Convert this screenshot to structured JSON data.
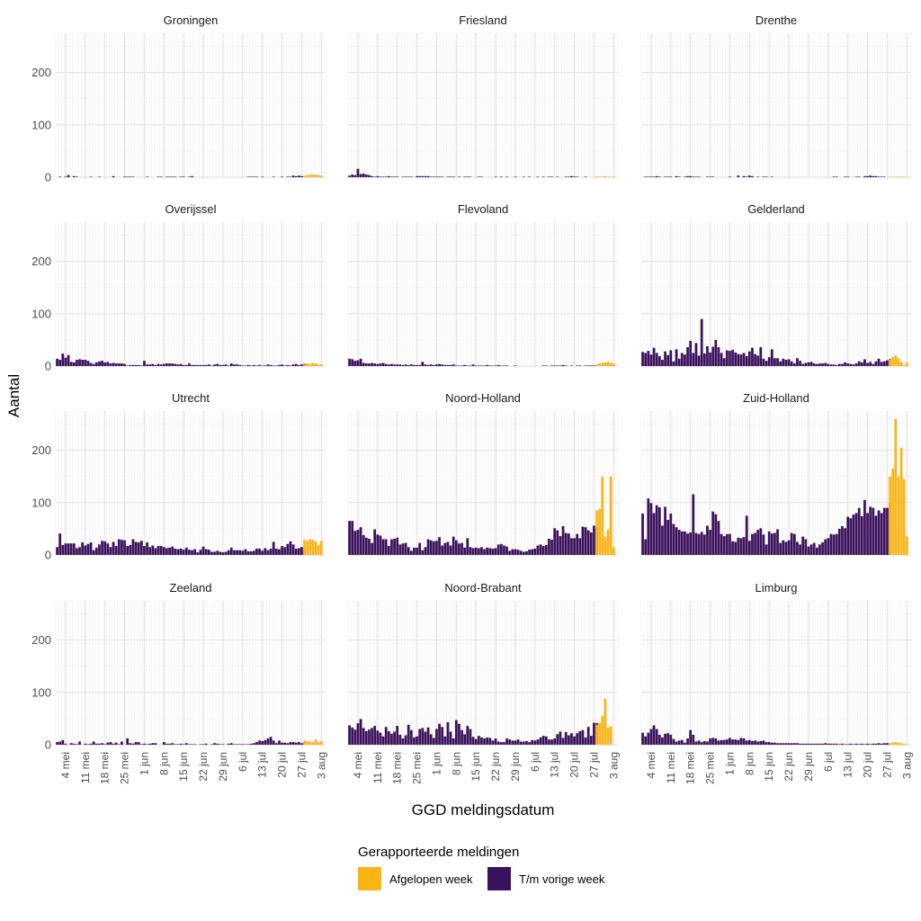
{
  "chart_data": {
    "type": "bar",
    "stacked": true,
    "facet_layout": {
      "rows": 4,
      "cols": 3
    },
    "xlabel": "GGD meldingsdatum",
    "ylabel": "Aantal",
    "ylim": [
      0,
      275
    ],
    "yticks": [
      0,
      100,
      200
    ],
    "date_range": [
      "2020-05-01",
      "2020-08-04"
    ],
    "x_tick_labels": [
      {
        "date": "2020-05-04",
        "label": "4 mei"
      },
      {
        "date": "2020-05-11",
        "label": "11 mei"
      },
      {
        "date": "2020-05-18",
        "label": "18 mei"
      },
      {
        "date": "2020-05-25",
        "label": "25 mei"
      },
      {
        "date": "2020-06-01",
        "label": "1 jun"
      },
      {
        "date": "2020-06-08",
        "label": "8 jun"
      },
      {
        "date": "2020-06-15",
        "label": "15 jun"
      },
      {
        "date": "2020-06-22",
        "label": "22 jun"
      },
      {
        "date": "2020-06-29",
        "label": "29 jun"
      },
      {
        "date": "2020-07-06",
        "label": "6 jul"
      },
      {
        "date": "2020-07-13",
        "label": "13 jul"
      },
      {
        "date": "2020-07-20",
        "label": "20 jul"
      },
      {
        "date": "2020-07-27",
        "label": "27 jul"
      },
      {
        "date": "2020-08-03",
        "label": "3 aug"
      }
    ],
    "grid": true,
    "legend": {
      "title": "Gerapporteerde meldingen",
      "position": "bottom",
      "entries": [
        {
          "label": "Afgelopen week",
          "color": "#FDB515"
        },
        {
          "label": "T/m vorige week",
          "color": "#3B115C"
        }
      ]
    },
    "last_week_start": "2020-07-28",
    "panels": [
      {
        "name": "Groningen",
        "vorige_week": [
          0,
          1,
          0,
          1,
          4,
          0,
          2,
          1,
          0,
          0,
          0,
          0,
          1,
          0,
          0,
          1,
          0,
          0,
          0,
          0,
          2,
          0,
          0,
          0,
          1,
          1,
          1,
          1,
          0,
          0,
          0,
          0,
          1,
          0,
          0,
          0,
          1,
          1,
          0,
          1,
          1,
          1,
          1,
          0,
          1,
          1,
          0,
          1,
          2,
          0,
          0,
          0,
          0,
          0,
          0,
          0,
          0,
          0,
          0,
          0,
          0,
          0,
          0,
          0,
          0,
          0,
          0,
          0,
          1,
          1,
          1,
          1,
          0,
          1,
          0,
          0,
          0,
          1,
          0,
          0,
          1,
          0,
          1,
          1,
          3,
          2,
          3,
          2,
          1
        ],
        "afgelopen_week": [
          3,
          4,
          5,
          5,
          5,
          4,
          3
        ]
      },
      {
        "name": "Friesland",
        "vorige_week": [
          3,
          5,
          4,
          16,
          6,
          7,
          5,
          4,
          2,
          1,
          2,
          1,
          1,
          1,
          2,
          1,
          1,
          1,
          0,
          1,
          1,
          1,
          1,
          0,
          2,
          2,
          2,
          2,
          2,
          1,
          1,
          1,
          1,
          1,
          0,
          1,
          1,
          1,
          0,
          1,
          0,
          1,
          1,
          1,
          0,
          0,
          1,
          1,
          0,
          0,
          0,
          0,
          1,
          0,
          1,
          0,
          1,
          0,
          0,
          1,
          0,
          0,
          1,
          0,
          1,
          0,
          0,
          1,
          0,
          1,
          0,
          1,
          1,
          0,
          1,
          0,
          0,
          1,
          1,
          2,
          1,
          1,
          0,
          0,
          1,
          0,
          0,
          0,
          1
        ],
        "afgelopen_week": [
          1,
          1,
          1,
          2,
          1,
          1,
          1
        ]
      },
      {
        "name": "Drenthe",
        "vorige_week": [
          0,
          1,
          1,
          1,
          1,
          2,
          1,
          0,
          1,
          1,
          1,
          0,
          2,
          1,
          0,
          1,
          2,
          2,
          1,
          1,
          1,
          0,
          0,
          1,
          1,
          1,
          0,
          0,
          0,
          0,
          0,
          1,
          0,
          0,
          3,
          0,
          2,
          1,
          3,
          2,
          0,
          1,
          0,
          1,
          1,
          0,
          1,
          0,
          0,
          0,
          0,
          0,
          0,
          0,
          0,
          0,
          0,
          0,
          0,
          0,
          0,
          0,
          0,
          0,
          0,
          0,
          0,
          0,
          1,
          1,
          0,
          0,
          1,
          1,
          0,
          0,
          1,
          1,
          0,
          2,
          2,
          3,
          2,
          2,
          1,
          1,
          1,
          0,
          0
        ],
        "afgelopen_week": [
          1,
          1,
          1,
          1,
          1,
          1,
          0
        ]
      },
      {
        "name": "Overijssel",
        "vorige_week": [
          14,
          12,
          24,
          16,
          21,
          8,
          7,
          12,
          13,
          12,
          12,
          10,
          6,
          4,
          7,
          9,
          10,
          7,
          8,
          5,
          6,
          5,
          5,
          5,
          4,
          1,
          2,
          2,
          2,
          2,
          1,
          10,
          3,
          3,
          4,
          2,
          4,
          3,
          4,
          5,
          5,
          5,
          4,
          3,
          4,
          2,
          2,
          5,
          2,
          2,
          2,
          2,
          2,
          2,
          3,
          1,
          3,
          4,
          2,
          2,
          3,
          1,
          5,
          3,
          3,
          2,
          1,
          1,
          2,
          1,
          2,
          1,
          2,
          1,
          1,
          3,
          2,
          1,
          1,
          2,
          3,
          1,
          2,
          1,
          3,
          4,
          2,
          3,
          4
        ],
        "afgelopen_week": [
          3,
          5,
          4,
          6,
          5,
          3,
          3
        ]
      },
      {
        "name": "Flevoland",
        "vorige_week": [
          14,
          13,
          10,
          11,
          14,
          6,
          5,
          5,
          6,
          5,
          4,
          5,
          6,
          4,
          3,
          4,
          3,
          3,
          3,
          2,
          3,
          2,
          3,
          2,
          2,
          2,
          8,
          3,
          2,
          3,
          2,
          3,
          4,
          3,
          2,
          2,
          2,
          3,
          1,
          1,
          1,
          2,
          1,
          1,
          3,
          1,
          1,
          1,
          1,
          2,
          1,
          1,
          1,
          2,
          1,
          1,
          1,
          0,
          0,
          1,
          0,
          0,
          0,
          0,
          0,
          0,
          0,
          0,
          0,
          1,
          1,
          0,
          1,
          1,
          1,
          1,
          2,
          1,
          0,
          1,
          0,
          1,
          1,
          0,
          1,
          1,
          1,
          1,
          2
        ],
        "afgelopen_week": [
          3,
          5,
          6,
          7,
          8,
          6,
          5
        ]
      },
      {
        "name": "Gelderland",
        "vorige_week": [
          27,
          25,
          29,
          22,
          35,
          25,
          19,
          12,
          28,
          21,
          30,
          9,
          32,
          14,
          25,
          22,
          36,
          48,
          25,
          44,
          20,
          90,
          24,
          38,
          26,
          37,
          50,
          36,
          25,
          15,
          30,
          29,
          31,
          26,
          23,
          22,
          25,
          19,
          28,
          35,
          23,
          20,
          36,
          14,
          10,
          17,
          32,
          15,
          15,
          9,
          14,
          12,
          13,
          9,
          5,
          15,
          10,
          4,
          6,
          7,
          8,
          5,
          4,
          5,
          5,
          6,
          4,
          3,
          3,
          2,
          4,
          4,
          7,
          5,
          4,
          3,
          5,
          9,
          7,
          13,
          6,
          8,
          4,
          9,
          14,
          8,
          9,
          11,
          13
        ],
        "afgelopen_week": [
          12,
          17,
          20,
          15,
          8,
          2,
          7
        ]
      },
      {
        "name": "Utrecht",
        "vorige_week": [
          15,
          41,
          19,
          22,
          22,
          22,
          22,
          13,
          15,
          24,
          18,
          21,
          24,
          9,
          14,
          20,
          27,
          26,
          22,
          15,
          25,
          17,
          30,
          29,
          28,
          17,
          19,
          30,
          25,
          24,
          27,
          17,
          24,
          15,
          18,
          13,
          17,
          17,
          15,
          13,
          14,
          16,
          12,
          11,
          12,
          10,
          14,
          10,
          9,
          11,
          5,
          10,
          16,
          11,
          10,
          6,
          6,
          8,
          6,
          5,
          6,
          9,
          14,
          9,
          9,
          9,
          8,
          11,
          7,
          7,
          8,
          12,
          12,
          8,
          13,
          9,
          12,
          25,
          12,
          11,
          17,
          15,
          21,
          26,
          20,
          12,
          13,
          15,
          9
        ],
        "afgelopen_week": [
          29,
          27,
          30,
          29,
          26,
          19,
          27
        ]
      },
      {
        "name": "Noord-Holland",
        "vorige_week": [
          65,
          65,
          46,
          48,
          53,
          38,
          33,
          31,
          23,
          49,
          39,
          37,
          30,
          30,
          17,
          30,
          31,
          33,
          20,
          22,
          23,
          15,
          8,
          14,
          14,
          23,
          9,
          15,
          30,
          28,
          26,
          27,
          34,
          18,
          23,
          25,
          18,
          35,
          28,
          22,
          23,
          14,
          32,
          15,
          13,
          14,
          13,
          15,
          11,
          14,
          13,
          12,
          13,
          20,
          21,
          18,
          16,
          8,
          11,
          11,
          10,
          8,
          6,
          7,
          10,
          11,
          12,
          18,
          20,
          17,
          19,
          31,
          29,
          51,
          47,
          36,
          55,
          42,
          41,
          32,
          32,
          40,
          32,
          54,
          53,
          47,
          43,
          56,
          50
        ],
        "afgelopen_week": [
          85,
          88,
          150,
          34,
          48,
          150,
          15
        ]
      },
      {
        "name": "Zuid-Holland",
        "vorige_week": [
          79,
          30,
          108,
          99,
          80,
          95,
          91,
          56,
          92,
          67,
          79,
          59,
          53,
          48,
          45,
          45,
          41,
          43,
          116,
          42,
          40,
          44,
          39,
          56,
          48,
          83,
          78,
          65,
          40,
          36,
          40,
          40,
          26,
          25,
          33,
          32,
          34,
          75,
          27,
          40,
          42,
          48,
          51,
          39,
          20,
          45,
          41,
          42,
          49,
          23,
          28,
          25,
          28,
          42,
          40,
          25,
          20,
          35,
          30,
          16,
          20,
          23,
          14,
          20,
          24,
          30,
          32,
          40,
          39,
          40,
          50,
          55,
          51,
          73,
          70,
          77,
          80,
          90,
          74,
          105,
          80,
          92,
          90,
          75,
          85,
          80,
          90,
          90,
          100
        ],
        "afgelopen_week": [
          150,
          165,
          260,
          150,
          205,
          145,
          35
        ]
      },
      {
        "name": "Zeeland",
        "vorige_week": [
          5,
          6,
          9,
          2,
          0,
          3,
          2,
          1,
          6,
          0,
          2,
          1,
          2,
          6,
          2,
          2,
          3,
          1,
          4,
          5,
          2,
          4,
          1,
          6,
          0,
          12,
          3,
          2,
          5,
          5,
          1,
          2,
          1,
          2,
          3,
          3,
          0,
          0,
          5,
          2,
          2,
          3,
          1,
          1,
          2,
          1,
          3,
          1,
          1,
          1,
          0,
          1,
          1,
          2,
          0,
          1,
          3,
          2,
          1,
          1,
          0,
          2,
          3,
          1,
          1,
          1,
          1,
          1,
          1,
          2,
          3,
          5,
          8,
          7,
          9,
          12,
          15,
          8,
          3,
          8,
          4,
          4,
          3,
          5,
          5,
          4,
          5,
          3,
          4
        ],
        "afgelopen_week": [
          8,
          7,
          6,
          5,
          10,
          5,
          7
        ]
      },
      {
        "name": "Noord-Brabant",
        "vorige_week": [
          37,
          33,
          29,
          41,
          49,
          32,
          26,
          29,
          32,
          36,
          27,
          23,
          16,
          34,
          26,
          21,
          25,
          36,
          19,
          12,
          18,
          38,
          28,
          14,
          16,
          30,
          32,
          25,
          33,
          20,
          13,
          30,
          40,
          34,
          16,
          43,
          25,
          12,
          47,
          40,
          28,
          20,
          36,
          30,
          15,
          11,
          17,
          14,
          12,
          14,
          13,
          8,
          12,
          6,
          5,
          5,
          12,
          10,
          8,
          8,
          10,
          6,
          6,
          7,
          5,
          9,
          8,
          10,
          14,
          17,
          16,
          10,
          10,
          12,
          20,
          25,
          13,
          24,
          18,
          22,
          16,
          22,
          26,
          28,
          14,
          34,
          17,
          42,
          41
        ],
        "afgelopen_week": [
          38,
          42,
          55,
          88,
          33,
          35,
          0
        ]
      },
      {
        "name": "Limburg",
        "vorige_week": [
          23,
          16,
          23,
          30,
          37,
          30,
          19,
          14,
          21,
          22,
          19,
          11,
          6,
          8,
          9,
          4,
          12,
          28,
          19,
          6,
          8,
          5,
          7,
          6,
          12,
          13,
          12,
          8,
          9,
          9,
          10,
          13,
          10,
          10,
          9,
          13,
          12,
          8,
          9,
          7,
          8,
          6,
          7,
          8,
          5,
          5,
          4,
          4,
          3,
          3,
          3,
          3,
          3,
          3,
          3,
          3,
          2,
          2,
          2,
          2,
          2,
          2,
          2,
          2,
          2,
          3,
          2,
          2,
          2,
          2,
          1,
          2,
          1,
          1,
          2,
          1,
          2,
          1,
          2,
          1,
          2,
          1,
          2,
          2,
          3,
          2,
          3,
          3,
          2
        ],
        "afgelopen_week": [
          3,
          4,
          5,
          4,
          3,
          2,
          1
        ]
      }
    ]
  }
}
